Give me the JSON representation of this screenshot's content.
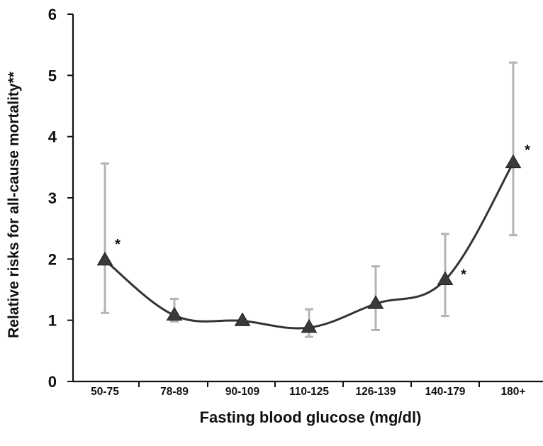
{
  "chart_data": {
    "type": "line",
    "title": "",
    "xlabel": "Fasting blood glucose (mg/dl)",
    "ylabel": "Relative risks for all-cause mortality**",
    "ylim": [
      0,
      6
    ],
    "yticks": [
      "0",
      "1",
      "2",
      "3",
      "4",
      "5",
      "6"
    ],
    "categories": [
      "50-75",
      "78-89",
      "90-109",
      "110-125",
      "126-139",
      "140-179",
      "180+"
    ],
    "series": [
      {
        "values": [
          1.98,
          1.08,
          0.99,
          0.88,
          1.27,
          1.66,
          3.57
        ],
        "ci_low": [
          1.12,
          0.98,
          0.99,
          0.73,
          0.84,
          1.07,
          2.39
        ],
        "ci_high": [
          3.56,
          1.35,
          0.99,
          1.18,
          1.88,
          2.41,
          5.21
        ],
        "marker": "triangle",
        "annotations": [
          "*",
          "",
          "",
          "",
          "",
          "*",
          "*"
        ]
      }
    ],
    "grid": false,
    "legend": "none",
    "colors": {
      "line": "#333333",
      "marker": "#3a3a3a",
      "error_bar": "#b4b4b4"
    }
  }
}
